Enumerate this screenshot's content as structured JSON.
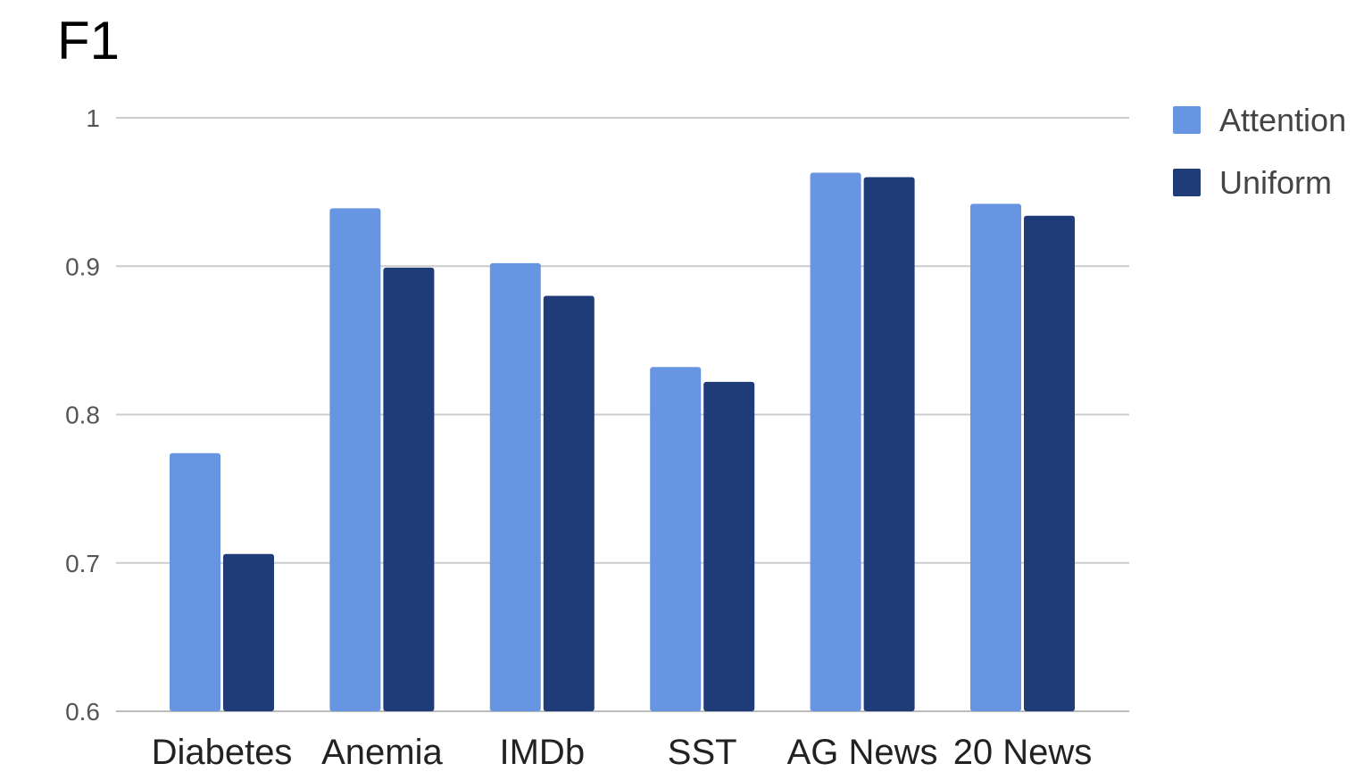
{
  "chart_data": {
    "type": "bar",
    "title": "F1",
    "xlabel": "",
    "ylabel": "",
    "categories": [
      "Diabetes",
      "Anemia",
      "IMDb",
      "SST",
      "AG News",
      "20 News"
    ],
    "series": [
      {
        "name": "Attention",
        "color": "#6895e2",
        "values": [
          0.774,
          0.939,
          0.902,
          0.832,
          0.963,
          0.942
        ]
      },
      {
        "name": "Uniform",
        "color": "#1f3b78",
        "values": [
          0.706,
          0.899,
          0.88,
          0.822,
          0.96,
          0.934
        ]
      }
    ],
    "ylim": [
      0.6,
      1.0
    ],
    "yticks": [
      {
        "value": 1.0,
        "label": "1"
      },
      {
        "value": 0.9,
        "label": "0.9"
      },
      {
        "value": 0.8,
        "label": "0.8"
      },
      {
        "value": 0.7,
        "label": "0.7"
      },
      {
        "value": 0.6,
        "label": "0.6"
      }
    ],
    "grid": true,
    "legend_position": "top-right"
  }
}
